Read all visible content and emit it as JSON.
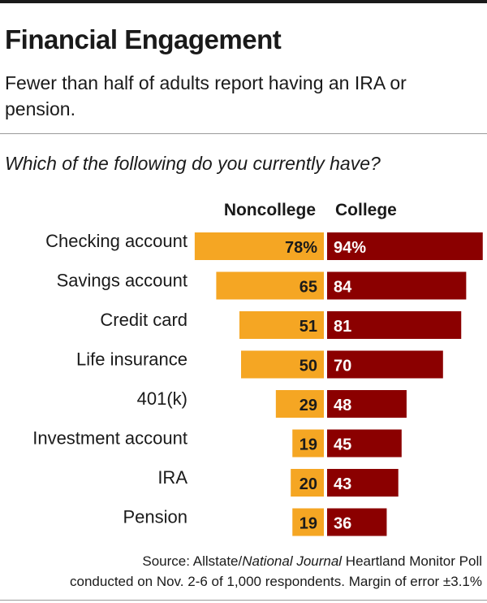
{
  "title": "Financial Engagement",
  "subtitle": "Fewer than half of adults report having an IRA or pension.",
  "question": "Which of the following do you currently have?",
  "source": {
    "prefix": "Source: Allstate/",
    "publication": "National Journal",
    "suffix": " Heartland Monitor Poll",
    "line2": "conducted on Nov. 2-6 of 1,000 respondents. Margin of error ±3.1%"
  },
  "colors": {
    "noncollege": "#f5a623",
    "college": "#8b0000"
  },
  "chart_data": {
    "type": "bar",
    "categories": [
      "Checking account",
      "Savings account",
      "Credit card",
      "Life insurance",
      "401(k)",
      "Investment account",
      "IRA",
      "Pension"
    ],
    "series": [
      {
        "name": "Noncollege",
        "values": [
          78,
          65,
          51,
          50,
          29,
          19,
          20,
          19
        ],
        "labels": [
          "78%",
          "65",
          "51",
          "50",
          "29",
          "19",
          "20",
          "19"
        ]
      },
      {
        "name": "College",
        "values": [
          94,
          84,
          81,
          70,
          48,
          45,
          43,
          36
        ],
        "labels": [
          "94%",
          "84",
          "81",
          "70",
          "48",
          "45",
          "43",
          "36"
        ]
      }
    ],
    "ylim": [
      0,
      100
    ]
  }
}
